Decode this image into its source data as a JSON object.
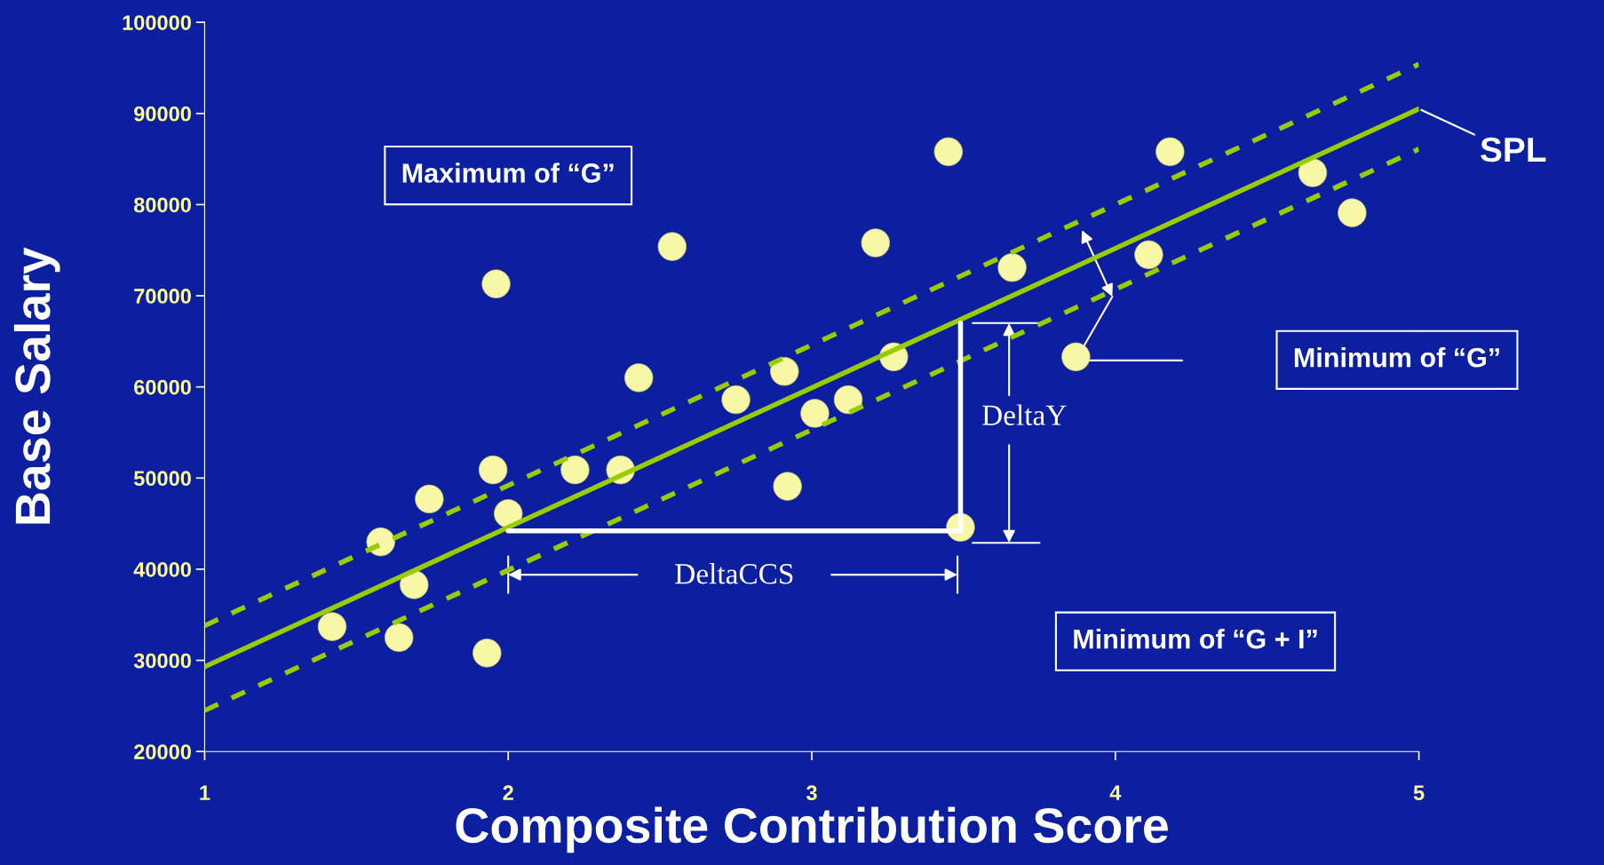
{
  "chart_data": {
    "type": "scatter",
    "xlabel": "Composite Contribution Score",
    "ylabel": "Base Salary",
    "xlim": [
      1,
      5
    ],
    "ylim": [
      20000,
      100000
    ],
    "xticks": [
      1,
      2,
      3,
      4,
      5
    ],
    "yticks": [
      20000,
      30000,
      40000,
      50000,
      60000,
      70000,
      80000,
      90000,
      100000
    ],
    "grid": false,
    "legend": false,
    "series": [
      {
        "marker": "circle",
        "color": "#f7f7a8",
        "x": [
          1.42,
          1.58,
          1.69,
          1.64,
          1.74,
          1.93,
          1.96,
          1.95,
          2.0,
          2.22,
          2.37,
          2.43,
          2.54,
          2.75,
          2.91,
          2.92,
          3.01,
          3.12,
          3.21,
          3.27,
          3.45,
          3.49,
          3.66,
          3.87,
          4.11,
          4.18,
          4.65,
          4.78
        ],
        "values": [
          33700,
          43000,
          38300,
          32500,
          47700,
          30800,
          71300,
          50900,
          46100,
          50900,
          50900,
          61000,
          75400,
          58600,
          61700,
          49100,
          57100,
          58600,
          75800,
          63300,
          85800,
          44600,
          73100,
          63300,
          74500,
          85800,
          83500,
          79100
        ]
      },
      {
        "type": "line",
        "color": "#99cc00",
        "line_style": "solid",
        "x": [
          1,
          5
        ],
        "values": [
          29300,
          90500
        ]
      },
      {
        "type": "line",
        "color": "#99cc00",
        "line_style": "dashed",
        "x": [
          1,
          5
        ],
        "values": [
          33800,
          95400
        ]
      },
      {
        "type": "line",
        "color": "#99cc00",
        "line_style": "dashed",
        "x": [
          1,
          5
        ],
        "values": [
          24500,
          86100
        ]
      },
      {
        "type": "line",
        "color": "#ffffff",
        "line_style": "solid",
        "x": [
          2.0,
          3.49
        ],
        "values": [
          44200,
          44200
        ]
      },
      {
        "type": "line",
        "color": "#ffffff",
        "line_style": "solid",
        "x": [
          3.49,
          3.49
        ],
        "values": [
          44200,
          67000
        ]
      }
    ],
    "annotations": [
      {
        "text": "SPL",
        "x": 5.0,
        "y": 90500
      },
      "Maximum of “G”",
      "Minimum of “G”",
      "Minimum of “G + I”",
      "DeltaY",
      "DeltaCCS"
    ]
  }
}
